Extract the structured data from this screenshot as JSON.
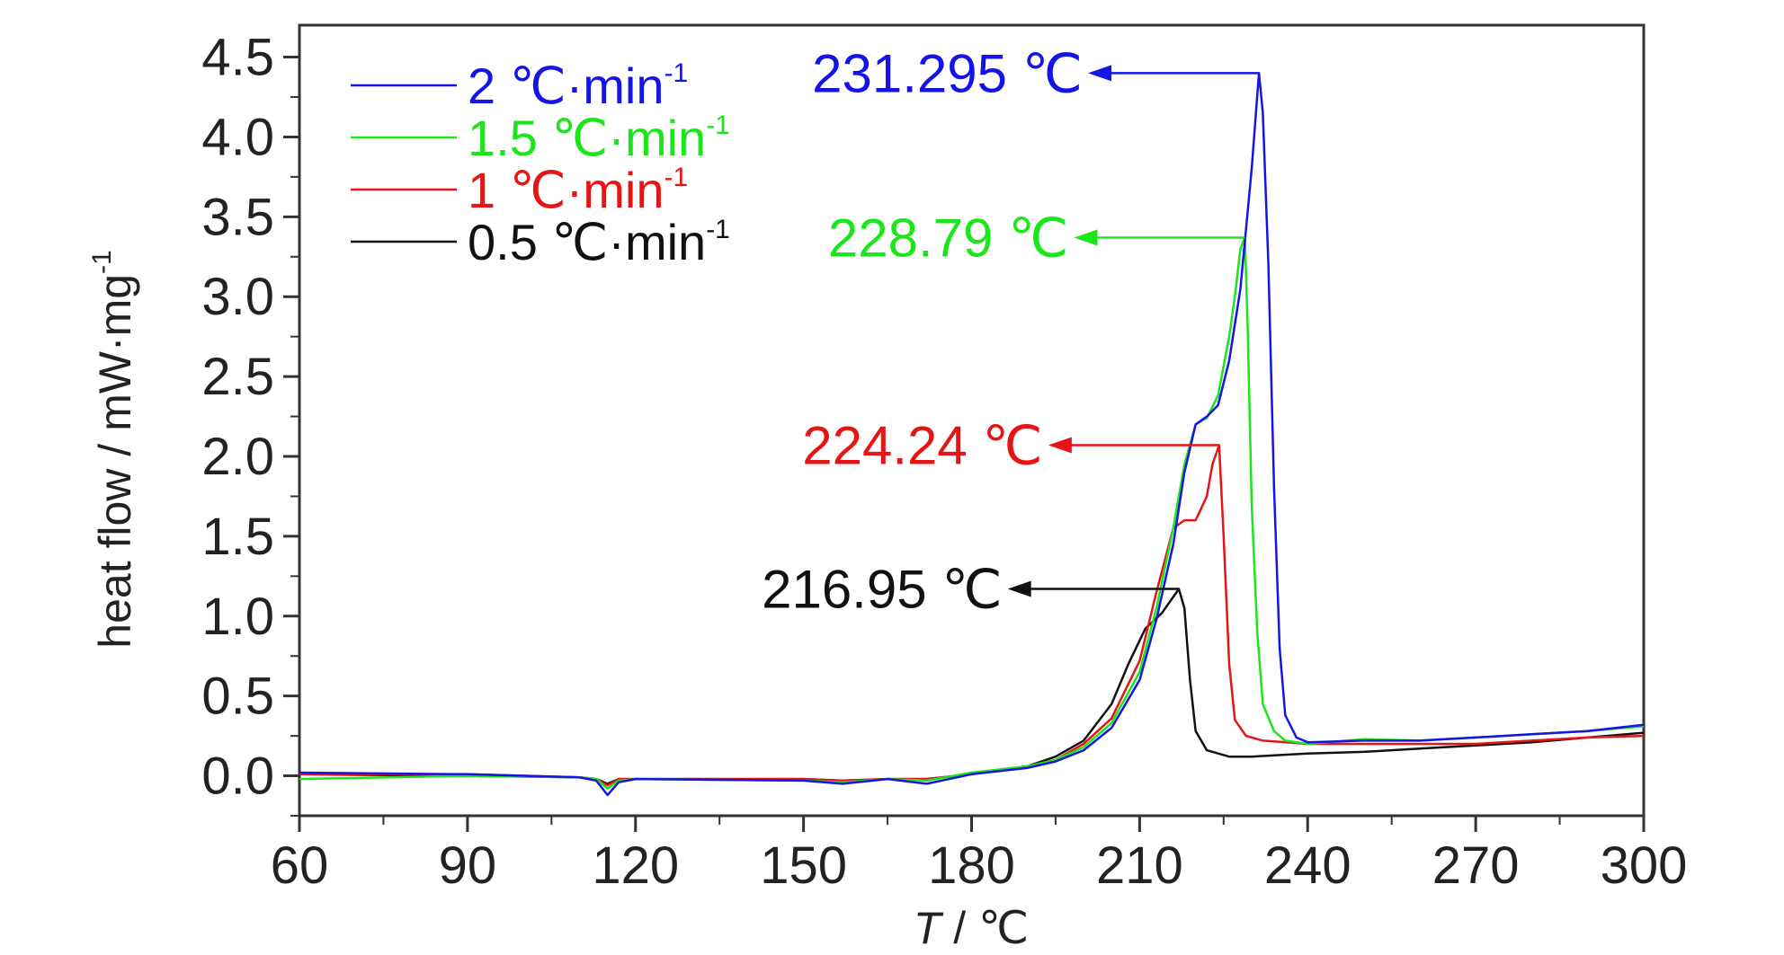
{
  "chart_data": {
    "type": "line",
    "xlabel_var": "T",
    "xlabel_unit": " / ℃",
    "ylabel": "heat flow / mW·mg",
    "ylabel_sup": "-1",
    "xlim": [
      60,
      300
    ],
    "ylim": [
      -0.25,
      4.7
    ],
    "xticks": [
      60,
      90,
      120,
      150,
      180,
      210,
      240,
      270,
      300
    ],
    "yticks": [
      0.0,
      0.5,
      1.0,
      1.5,
      2.0,
      2.5,
      3.0,
      3.5,
      4.0,
      4.5
    ],
    "ytick_labels": [
      "0.0",
      "0.5",
      "1.0",
      "1.5",
      "2.0",
      "2.5",
      "3.0",
      "3.5",
      "4.0",
      "4.5"
    ],
    "xtick_labels": [
      "60",
      "90",
      "120",
      "150",
      "180",
      "210",
      "240",
      "270",
      "300"
    ],
    "grid": false,
    "legend_position": "top-left",
    "series": [
      {
        "name": "2 ℃·min",
        "name_sup": "-1",
        "color": "#1414e6",
        "points": [
          [
            60,
            0.02
          ],
          [
            90,
            0.01
          ],
          [
            110,
            -0.01
          ],
          [
            113,
            -0.03
          ],
          [
            115,
            -0.12
          ],
          [
            117,
            -0.04
          ],
          [
            120,
            -0.02
          ],
          [
            150,
            -0.03
          ],
          [
            157,
            -0.05
          ],
          [
            165,
            -0.02
          ],
          [
            172,
            -0.05
          ],
          [
            180,
            0.01
          ],
          [
            190,
            0.05
          ],
          [
            195,
            0.09
          ],
          [
            200,
            0.16
          ],
          [
            205,
            0.3
          ],
          [
            210,
            0.6
          ],
          [
            213,
            0.98
          ],
          [
            216,
            1.45
          ],
          [
            218,
            1.9
          ],
          [
            220,
            2.2
          ],
          [
            222,
            2.25
          ],
          [
            224,
            2.32
          ],
          [
            226,
            2.6
          ],
          [
            228,
            3.05
          ],
          [
            230,
            3.8
          ],
          [
            231.3,
            4.4
          ],
          [
            232,
            4.15
          ],
          [
            233,
            3.2
          ],
          [
            234,
            1.8
          ],
          [
            235,
            0.8
          ],
          [
            236,
            0.38
          ],
          [
            238,
            0.24
          ],
          [
            240,
            0.21
          ],
          [
            250,
            0.22
          ],
          [
            260,
            0.22
          ],
          [
            270,
            0.24
          ],
          [
            280,
            0.26
          ],
          [
            290,
            0.28
          ],
          [
            300,
            0.32
          ]
        ]
      },
      {
        "name": "1.5 ℃·min",
        "name_sup": "-1",
        "color": "#1ae61a",
        "points": [
          [
            60,
            -0.02
          ],
          [
            90,
            0.0
          ],
          [
            110,
            -0.01
          ],
          [
            113,
            -0.02
          ],
          [
            115,
            -0.08
          ],
          [
            117,
            -0.03
          ],
          [
            120,
            -0.02
          ],
          [
            150,
            -0.03
          ],
          [
            157,
            -0.04
          ],
          [
            165,
            -0.02
          ],
          [
            172,
            -0.03
          ],
          [
            180,
            0.02
          ],
          [
            190,
            0.06
          ],
          [
            195,
            0.1
          ],
          [
            200,
            0.18
          ],
          [
            205,
            0.33
          ],
          [
            210,
            0.65
          ],
          [
            213,
            1.05
          ],
          [
            216,
            1.55
          ],
          [
            218,
            1.95
          ],
          [
            220,
            2.2
          ],
          [
            222,
            2.24
          ],
          [
            224,
            2.38
          ],
          [
            226,
            2.75
          ],
          [
            227,
            3.0
          ],
          [
            228,
            3.3
          ],
          [
            228.8,
            3.37
          ],
          [
            229.3,
            2.8
          ],
          [
            230,
            1.7
          ],
          [
            231,
            0.9
          ],
          [
            232,
            0.45
          ],
          [
            234,
            0.28
          ],
          [
            236,
            0.22
          ],
          [
            240,
            0.2
          ],
          [
            250,
            0.23
          ],
          [
            260,
            0.22
          ],
          [
            270,
            0.24
          ],
          [
            280,
            0.26
          ],
          [
            290,
            0.28
          ],
          [
            300,
            0.31
          ]
        ]
      },
      {
        "name": "1 ℃·min",
        "name_sup": "-1",
        "color": "#e61414",
        "points": [
          [
            60,
            0.01
          ],
          [
            90,
            0.01
          ],
          [
            110,
            -0.01
          ],
          [
            113,
            -0.02
          ],
          [
            115,
            -0.06
          ],
          [
            117,
            -0.02
          ],
          [
            120,
            -0.02
          ],
          [
            150,
            -0.02
          ],
          [
            157,
            -0.03
          ],
          [
            165,
            -0.02
          ],
          [
            172,
            -0.02
          ],
          [
            180,
            0.01
          ],
          [
            190,
            0.06
          ],
          [
            195,
            0.1
          ],
          [
            200,
            0.2
          ],
          [
            205,
            0.36
          ],
          [
            210,
            0.72
          ],
          [
            213,
            1.15
          ],
          [
            216,
            1.55
          ],
          [
            218,
            1.6
          ],
          [
            220,
            1.6
          ],
          [
            222,
            1.75
          ],
          [
            223,
            1.95
          ],
          [
            224.2,
            2.07
          ],
          [
            225,
            1.5
          ],
          [
            226,
            0.7
          ],
          [
            227,
            0.35
          ],
          [
            229,
            0.25
          ],
          [
            232,
            0.22
          ],
          [
            240,
            0.2
          ],
          [
            250,
            0.2
          ],
          [
            260,
            0.2
          ],
          [
            270,
            0.2
          ],
          [
            280,
            0.22
          ],
          [
            290,
            0.24
          ],
          [
            300,
            0.25
          ]
        ]
      },
      {
        "name": "0.5 ℃·min",
        "name_sup": "-1",
        "color": "#111111",
        "points": [
          [
            60,
            0.01
          ],
          [
            90,
            0.0
          ],
          [
            110,
            -0.01
          ],
          [
            113,
            -0.02
          ],
          [
            115,
            -0.05
          ],
          [
            117,
            -0.02
          ],
          [
            120,
            -0.02
          ],
          [
            150,
            -0.02
          ],
          [
            157,
            -0.03
          ],
          [
            165,
            -0.02
          ],
          [
            172,
            -0.02
          ],
          [
            180,
            0.01
          ],
          [
            190,
            0.06
          ],
          [
            195,
            0.12
          ],
          [
            200,
            0.22
          ],
          [
            205,
            0.45
          ],
          [
            208,
            0.7
          ],
          [
            211,
            0.92
          ],
          [
            214,
            1.02
          ],
          [
            216,
            1.12
          ],
          [
            217,
            1.17
          ],
          [
            218,
            1.05
          ],
          [
            219,
            0.6
          ],
          [
            220,
            0.28
          ],
          [
            222,
            0.16
          ],
          [
            226,
            0.12
          ],
          [
            230,
            0.12
          ],
          [
            240,
            0.14
          ],
          [
            250,
            0.15
          ],
          [
            260,
            0.17
          ],
          [
            270,
            0.19
          ],
          [
            280,
            0.21
          ],
          [
            290,
            0.24
          ],
          [
            300,
            0.27
          ]
        ]
      }
    ],
    "annotations": [
      {
        "text": "231.295 ℃",
        "color": "#1414e6",
        "peak_x": 231.3,
        "peak_y": 4.4
      },
      {
        "text": "228.79 ℃",
        "color": "#1ae61a",
        "peak_x": 228.8,
        "peak_y": 3.37
      },
      {
        "text": "224.24 ℃",
        "color": "#e61414",
        "peak_x": 224.2,
        "peak_y": 2.07
      },
      {
        "text": "216.95 ℃",
        "color": "#111111",
        "peak_x": 216.95,
        "peak_y": 1.17
      }
    ]
  }
}
